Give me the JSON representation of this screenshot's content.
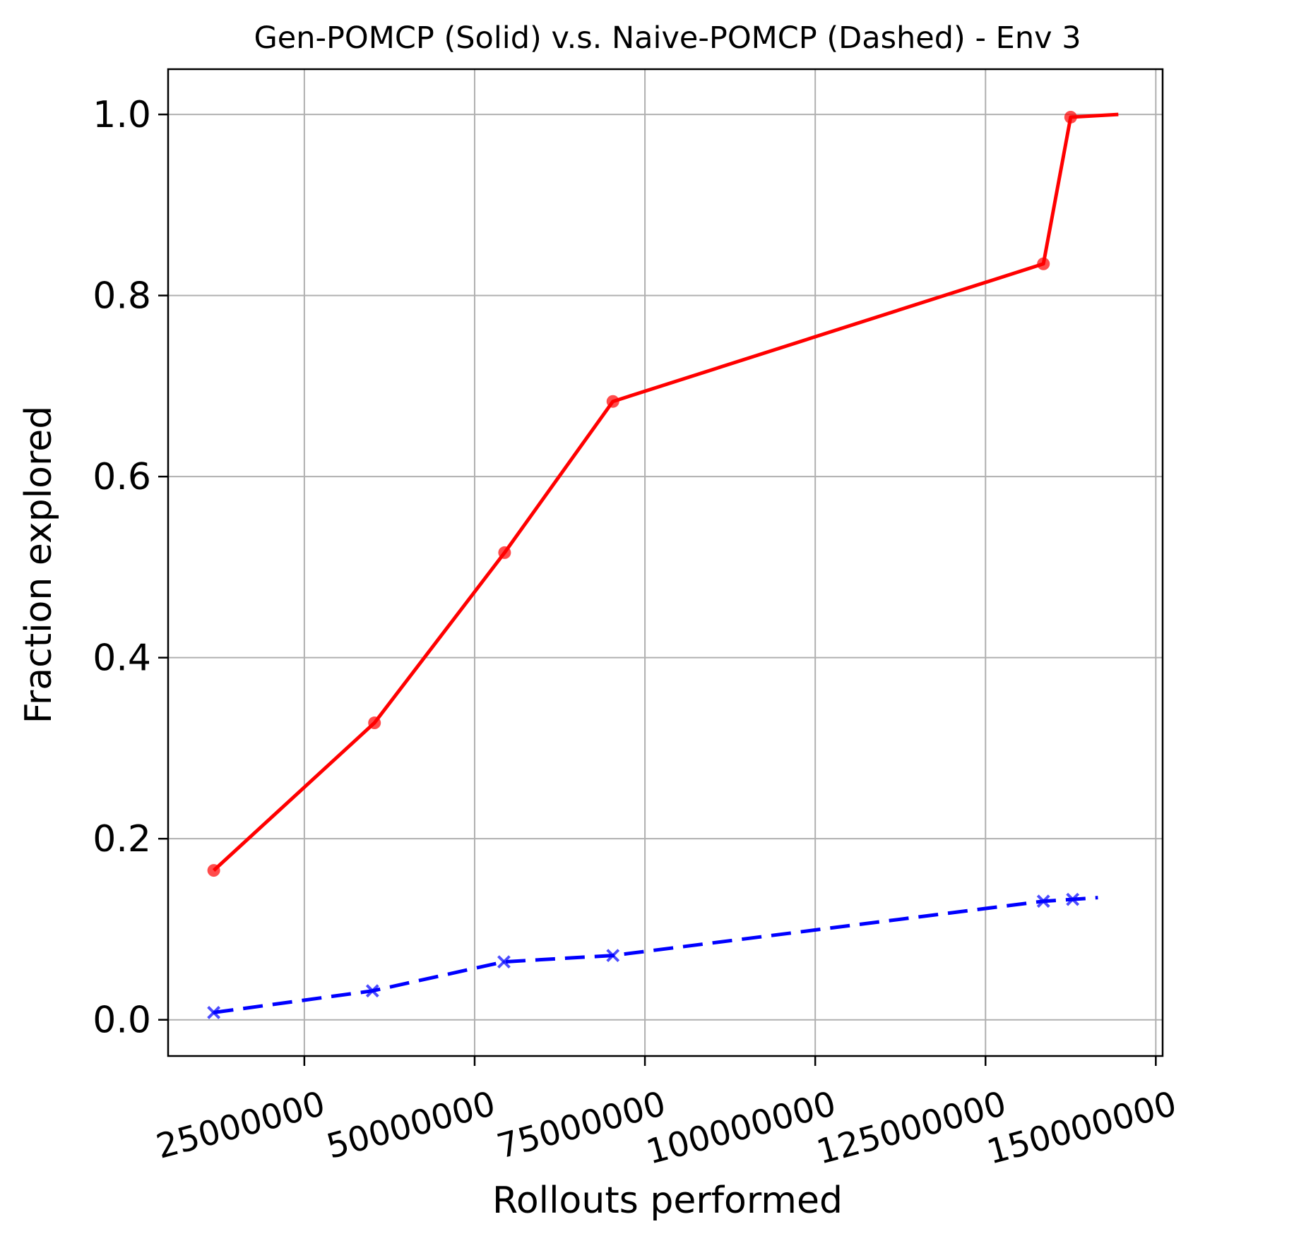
{
  "chart_data": {
    "type": "line",
    "title": "Gen-POMCP (Solid) v.s. Naive-POMCP (Dashed) - Env 3",
    "xlabel": "Rollouts performed",
    "ylabel": "Fraction explored",
    "xlim": [
      5000000,
      151000000
    ],
    "ylim": [
      -0.04,
      1.05
    ],
    "xticks": [
      25000000,
      50000000,
      75000000,
      100000000,
      125000000,
      150000000
    ],
    "xtick_labels": [
      "25000000",
      "50000000",
      "75000000",
      "100000000",
      "125000000",
      "150000000"
    ],
    "yticks": [
      0.0,
      0.2,
      0.4,
      0.6,
      0.8,
      1.0
    ],
    "ytick_labels": [
      "0.0",
      "0.2",
      "0.4",
      "0.6",
      "0.8",
      "1.0"
    ],
    "grid": true,
    "series": [
      {
        "style": "solid",
        "color": "#ff0000",
        "marker": "circle",
        "x": [
          11700000,
          35300000,
          54400000,
          70300000,
          133500000,
          137500000,
          144500000
        ],
        "y": [
          0.165,
          0.328,
          0.516,
          0.683,
          0.835,
          0.997,
          1.0
        ],
        "marker_count": 6
      },
      {
        "style": "dashed",
        "color": "#0000ff",
        "marker": "x",
        "x": [
          11700000,
          35000000,
          54300000,
          70300000,
          133500000,
          137800000,
          141500000
        ],
        "y": [
          0.008,
          0.032,
          0.064,
          0.071,
          0.131,
          0.133,
          0.135
        ],
        "marker_count": 6
      }
    ]
  }
}
